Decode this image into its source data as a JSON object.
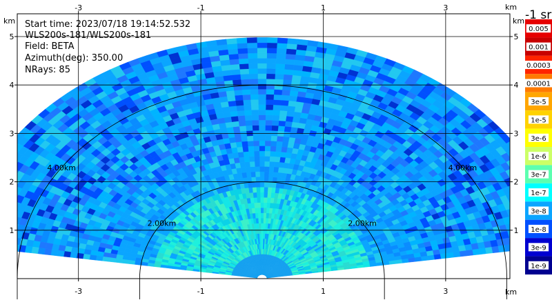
{
  "info": {
    "start_time": "Start time: 2023/07/18 19:14:52.532",
    "instrument": "WLS200s-181/WLS200s-181",
    "field": "Field: BETA",
    "azimuth": "Azimuth(deg): 350.00",
    "nrays": "NRays: 85"
  },
  "axis_unit_label": "km",
  "colorbar": {
    "units_label": "-1 sr",
    "labels": [
      "0.005",
      "0.001",
      "0.0003",
      "0.0001",
      "3e-5",
      "1e-5",
      "3e-6",
      "1e-6",
      "3e-7",
      "1e-7",
      "3e-8",
      "1e-8",
      "3e-9",
      "1e-9"
    ],
    "colors": [
      "#e60000",
      "#c80000",
      "#ff2400",
      "#ff7a00",
      "#ffa600",
      "#ffd200",
      "#ffff00",
      "#ccff66",
      "#5cffb0",
      "#00ffff",
      "#0aa5ff",
      "#0050ff",
      "#0000d0",
      "#000090"
    ]
  },
  "chart_data": {
    "type": "heatmap",
    "subtype": "rhi-radar",
    "x_ticks": [
      -3,
      -1,
      1,
      3
    ],
    "y_ticks": [
      1,
      2,
      3,
      4,
      5
    ],
    "xlim": [
      -4.0,
      4.05
    ],
    "ylim": [
      0,
      5.47
    ],
    "range_rings_km": [
      2.0,
      4.0
    ],
    "ring_labels": [
      "2.00km",
      "4.00km"
    ],
    "max_range_km": 4.98,
    "sector_deg": [
      8,
      172
    ],
    "grid": true,
    "data_note": "Backscatter coefficient BETA; near range ~3e-7 (cyan-green), far range 1e-7 to 3e-8 (blue)"
  }
}
